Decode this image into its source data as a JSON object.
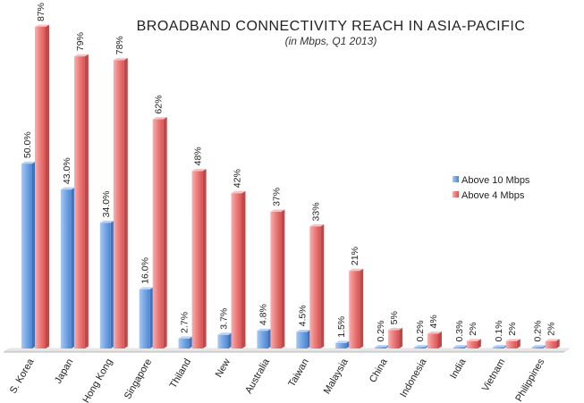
{
  "chart_data": {
    "type": "bar",
    "title": "BROADBAND CONNECTIVITY REACH IN ASIA-PACIFIC",
    "subtitle": "(in Mbps, Q1 2013)",
    "categories": [
      "S. Korea",
      "Japan",
      "Hong Kong",
      "Singapore",
      "Thiland",
      "New",
      "Australia",
      "Taiwan",
      "Malaysia",
      "China",
      "Indonesia",
      "India",
      "Vietnam",
      "Philippines"
    ],
    "series": [
      {
        "name": "Above 10 Mbps",
        "color": "#7aa9e6",
        "values": [
          50.0,
          43.0,
          34.0,
          16.0,
          2.7,
          3.7,
          4.8,
          4.5,
          1.5,
          0.2,
          0.2,
          0.3,
          0.1,
          0.2
        ],
        "labels": [
          "50.0%",
          "43.0%",
          "34.0%",
          "16.0%",
          "2.7%",
          "3.7%",
          "4.8%",
          "4.5%",
          "1.5%",
          "0.2%",
          "0.2%",
          "0.3%",
          "0.1%",
          "0.2%"
        ]
      },
      {
        "name": "Above 4 Mbps",
        "color": "#ee7f7f",
        "values": [
          87,
          79,
          78,
          62,
          48,
          42,
          37,
          33,
          21,
          5,
          4,
          2,
          2,
          2
        ],
        "labels": [
          "87%",
          "79%",
          "78%",
          "62%",
          "48%",
          "42%",
          "37%",
          "33%",
          "21%",
          "5%",
          "4%",
          "2%",
          "2%",
          "2%"
        ]
      }
    ],
    "ylim": [
      0,
      87
    ],
    "grid": false,
    "legend_position": "right"
  }
}
